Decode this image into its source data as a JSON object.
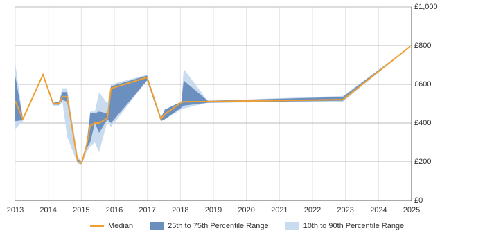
{
  "chart_data": {
    "type": "line",
    "x": [
      2013.0,
      2013.23,
      2013.84,
      2014.15,
      2014.32,
      2014.43,
      2014.57,
      2014.89,
      2015.01,
      2015.16,
      2015.27,
      2015.41,
      2015.54,
      2015.79,
      2015.9,
      2016.99,
      2017.41,
      2017.53,
      2018.03,
      2018.1,
      2018.83,
      2022.92,
      2024.96
    ],
    "series": [
      {
        "name": "Median",
        "color": "#f0a030",
        "values": [
          514,
          421,
          650,
          500,
          500,
          536,
          536,
          200,
          193,
          286,
          386,
          400,
          400,
          425,
          579,
          636,
          421,
          446,
          507,
          510,
          511,
          521,
          796
        ]
      }
    ],
    "bands": [
      {
        "name": "10th to 90th Percentile Range",
        "color": "#c9dbee",
        "lower": [
          370,
          410,
          650,
          490,
          490,
          510,
          330,
          190,
          185,
          250,
          280,
          300,
          250,
          410,
          380,
          620,
          410,
          420,
          470,
          475,
          505,
          510,
          796
        ],
        "upper": [
          707,
          430,
          650,
          505,
          510,
          580,
          580,
          230,
          200,
          300,
          460,
          460,
          560,
          500,
          600,
          650,
          430,
          470,
          510,
          680,
          515,
          540,
          796
        ]
      },
      {
        "name": "25th to 75th Percentile Range",
        "color": "#6b8fbf",
        "lower": [
          410,
          415,
          650,
          495,
          495,
          520,
          510,
          200,
          190,
          270,
          300,
          400,
          350,
          420,
          400,
          620,
          410,
          420,
          480,
          490,
          505,
          515,
          796
        ],
        "upper": [
          643,
          425,
          650,
          505,
          510,
          560,
          560,
          210,
          200,
          290,
          450,
          450,
          460,
          450,
          590,
          645,
          425,
          470,
          510,
          620,
          515,
          535,
          796
        ]
      }
    ],
    "xlim": [
      2013,
      2025
    ],
    "xticks": [
      2013,
      2014,
      2015,
      2016,
      2017,
      2018,
      2019,
      2020,
      2021,
      2022,
      2023,
      2024,
      2025
    ],
    "ylim": [
      0,
      1000
    ],
    "yticks": [
      {
        "value": 0,
        "label": "£0"
      },
      {
        "value": 200,
        "label": "£200"
      },
      {
        "value": 400,
        "label": "£400"
      },
      {
        "value": 600,
        "label": "£600"
      },
      {
        "value": 800,
        "label": "£800"
      },
      {
        "value": 1000,
        "label": "£1,000"
      }
    ],
    "grid": true
  }
}
